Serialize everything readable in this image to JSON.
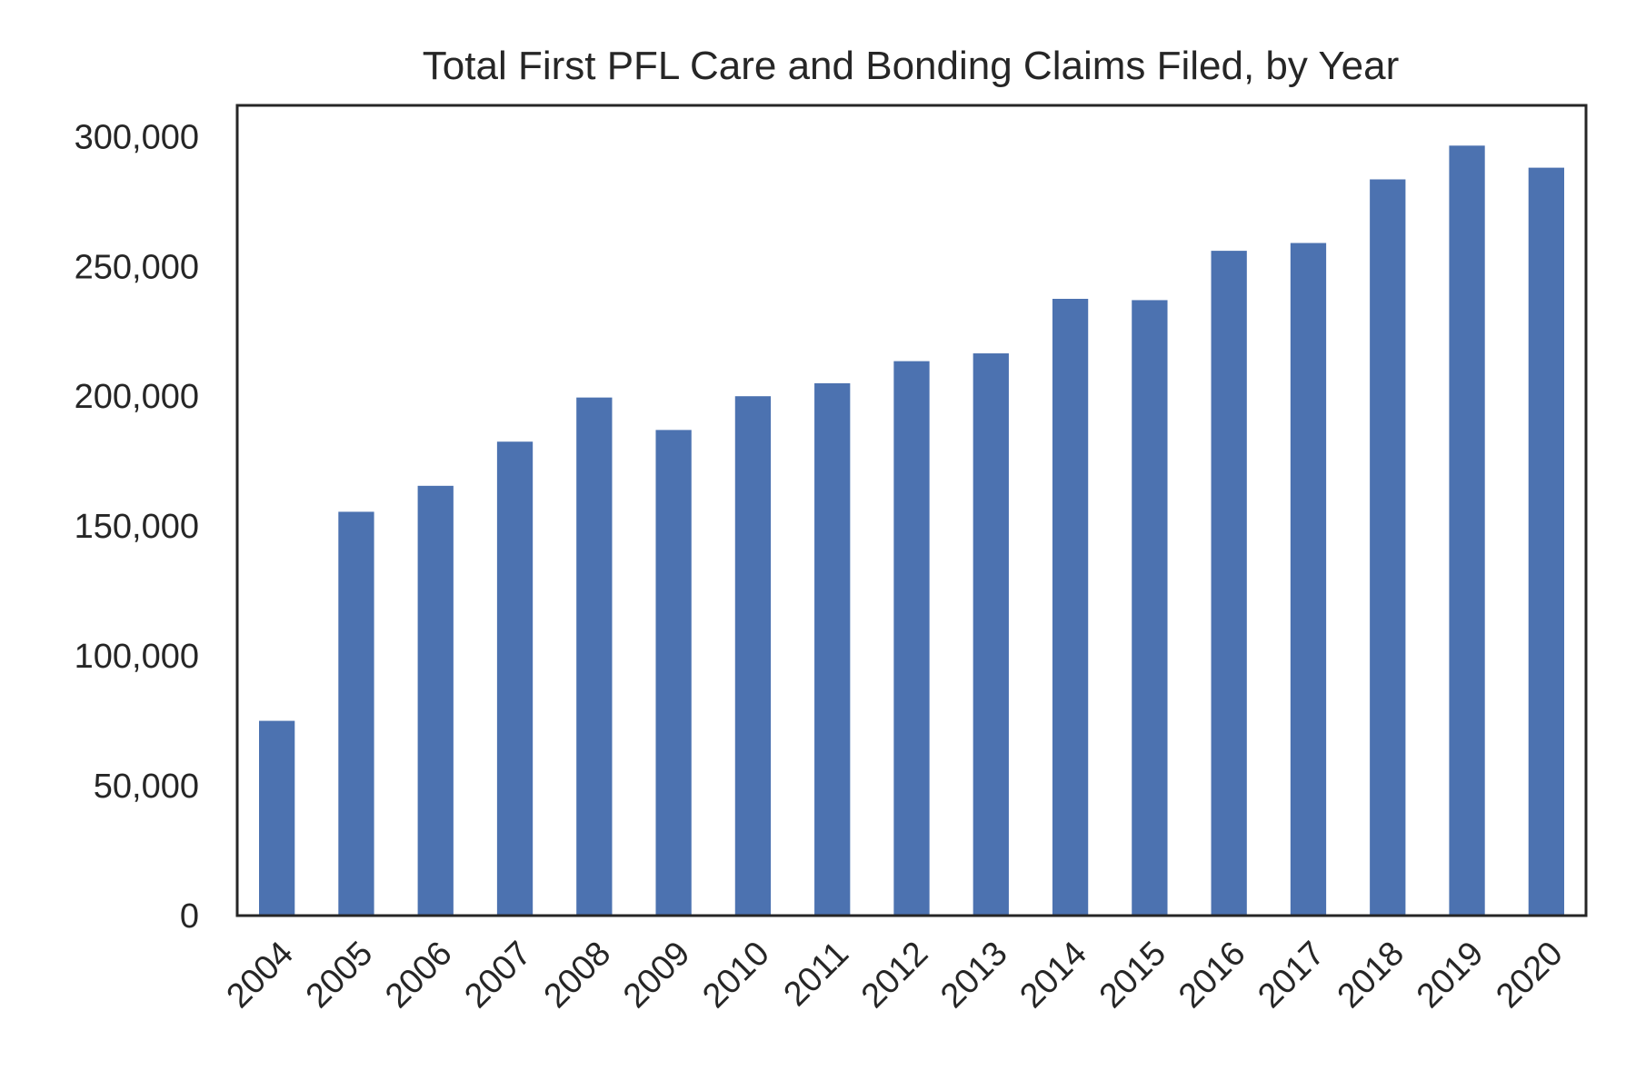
{
  "chart_data": {
    "type": "bar",
    "title": "Total First PFL Care and Bonding Claims Filed, by Year",
    "xlabel": "",
    "ylabel": "",
    "categories": [
      "2004",
      "2005",
      "2006",
      "2007",
      "2008",
      "2009",
      "2010",
      "2011",
      "2012",
      "2013",
      "2014",
      "2015",
      "2016",
      "2017",
      "2018",
      "2019",
      "2020"
    ],
    "values": [
      75000,
      155500,
      165500,
      182500,
      199500,
      187000,
      200000,
      205000,
      213500,
      216500,
      237500,
      237000,
      256000,
      259000,
      283500,
      296500,
      288000
    ],
    "ylim": [
      0,
      312000
    ],
    "yticks": [
      0,
      50000,
      100000,
      150000,
      200000,
      250000,
      300000
    ],
    "ytick_labels": [
      "0",
      "50,000",
      "100,000",
      "150,000",
      "200,000",
      "250,000",
      "300,000"
    ],
    "xtick_rotation": 45,
    "grid": false,
    "legend": "none",
    "bar_color": "#4c72b0",
    "frame_color": "#262626"
  }
}
